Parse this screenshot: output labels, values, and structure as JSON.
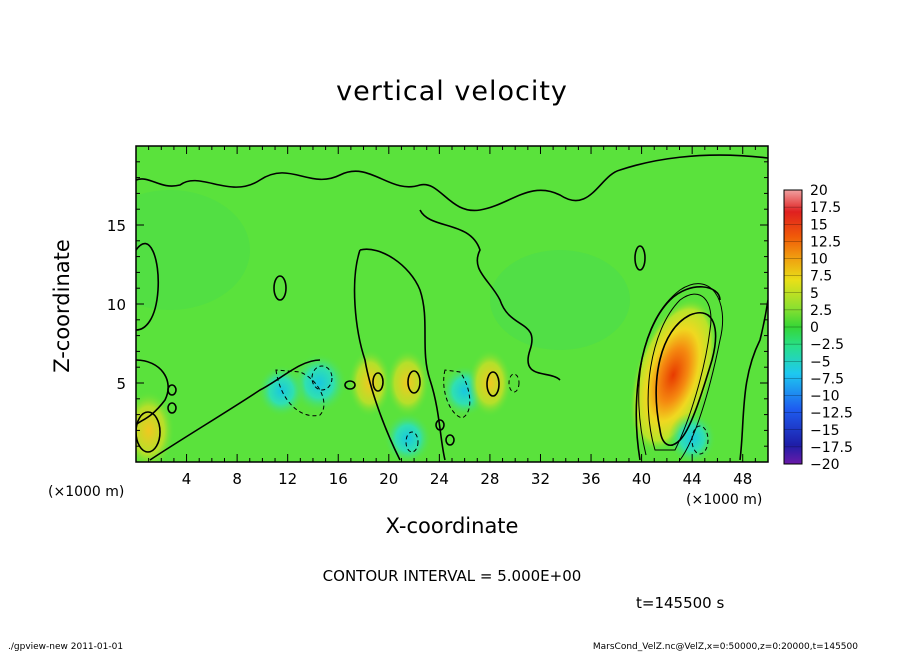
{
  "chart_data": {
    "type": "heatmap",
    "title": "vertical velocity",
    "xlabel": "X-coordinate",
    "ylabel": "Z-coordinate",
    "x_unit": "(×1000 m)",
    "y_unit": "(×1000 m)",
    "xlim": [
      0,
      50
    ],
    "ylim": [
      0,
      20
    ],
    "x_ticks": [
      "4",
      "8",
      "12",
      "16",
      "20",
      "24",
      "28",
      "32",
      "36",
      "40",
      "44",
      "48"
    ],
    "y_ticks": [
      "5",
      "10",
      "15"
    ],
    "colorbar": {
      "min": -20,
      "max": 20,
      "labels": [
        "20",
        "17.5",
        "15",
        "12.5",
        "10",
        "7.5",
        "5",
        "2.5",
        "0",
        "−2.5",
        "−5",
        "−7.5",
        "−10",
        "−12.5",
        "−15",
        "−17.5",
        "−20"
      ]
    },
    "features": [
      {
        "x": 42.5,
        "z": 5.5,
        "w": 12.5,
        "note": "updraft maximum"
      },
      {
        "x": 1.0,
        "z": 2.0,
        "w": 6.0
      },
      {
        "x": 14.5,
        "z": 5.0,
        "w": -8.0
      },
      {
        "x": 11.5,
        "z": 4.5,
        "w": -6.0
      },
      {
        "x": 26.0,
        "z": 4.5,
        "w": -6.0
      },
      {
        "x": 21.5,
        "z": 1.5,
        "w": -6.0
      },
      {
        "x": 44.0,
        "z": 1.5,
        "w": -6.0
      },
      {
        "x": 18.5,
        "z": 5.0,
        "w": 4.0
      },
      {
        "x": 21.5,
        "z": 5.0,
        "w": 4.0
      },
      {
        "x": 28.0,
        "z": 5.0,
        "w": 4.0
      }
    ]
  },
  "contour_interval": "CONTOUR INTERVAL = 5.000E+00",
  "time_label": "t=145500 s",
  "footer_left": "./gpview-new   2011-01-01",
  "footer_right": "MarsCond_VelZ.nc@VelZ,x=0:50000,z=0:20000,t=145500",
  "colors": {
    "background_field": "#5ae23c",
    "positive_max": "#e83a00",
    "negative": "#18d6d6"
  }
}
